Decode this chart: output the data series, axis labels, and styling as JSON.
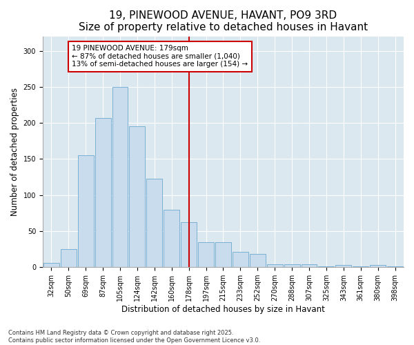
{
  "title": "19, PINEWOOD AVENUE, HAVANT, PO9 3RD",
  "subtitle": "Size of property relative to detached houses in Havant",
  "xlabel": "Distribution of detached houses by size in Havant",
  "ylabel": "Number of detached properties",
  "categories": [
    "32sqm",
    "50sqm",
    "69sqm",
    "87sqm",
    "105sqm",
    "124sqm",
    "142sqm",
    "160sqm",
    "178sqm",
    "197sqm",
    "215sqm",
    "233sqm",
    "252sqm",
    "270sqm",
    "288sqm",
    "307sqm",
    "325sqm",
    "343sqm",
    "361sqm",
    "380sqm",
    "398sqm"
  ],
  "values": [
    6,
    25,
    155,
    207,
    250,
    195,
    123,
    80,
    62,
    35,
    35,
    21,
    18,
    4,
    4,
    4,
    1,
    3,
    1,
    3,
    1
  ],
  "bar_color": "#c8dcee",
  "bar_edge_color": "#7ab0d4",
  "annotation_text": "19 PINEWOOD AVENUE: 179sqm\n← 87% of detached houses are smaller (1,040)\n13% of semi-detached houses are larger (154) →",
  "annotation_box_color": "#ffffff",
  "annotation_box_edge_color": "#cc0000",
  "line_color": "#cc0000",
  "property_line_index": 8,
  "ylim": [
    0,
    320
  ],
  "yticks": [
    0,
    50,
    100,
    150,
    200,
    250,
    300
  ],
  "bg_color": "#dce8f0",
  "fig_bg_color": "#ffffff",
  "footnote": "Contains HM Land Registry data © Crown copyright and database right 2025.\nContains public sector information licensed under the Open Government Licence v3.0.",
  "title_fontsize": 11,
  "subtitle_fontsize": 9.5,
  "label_fontsize": 8.5,
  "tick_fontsize": 7,
  "annotation_fontsize": 7.5,
  "footnote_fontsize": 6
}
